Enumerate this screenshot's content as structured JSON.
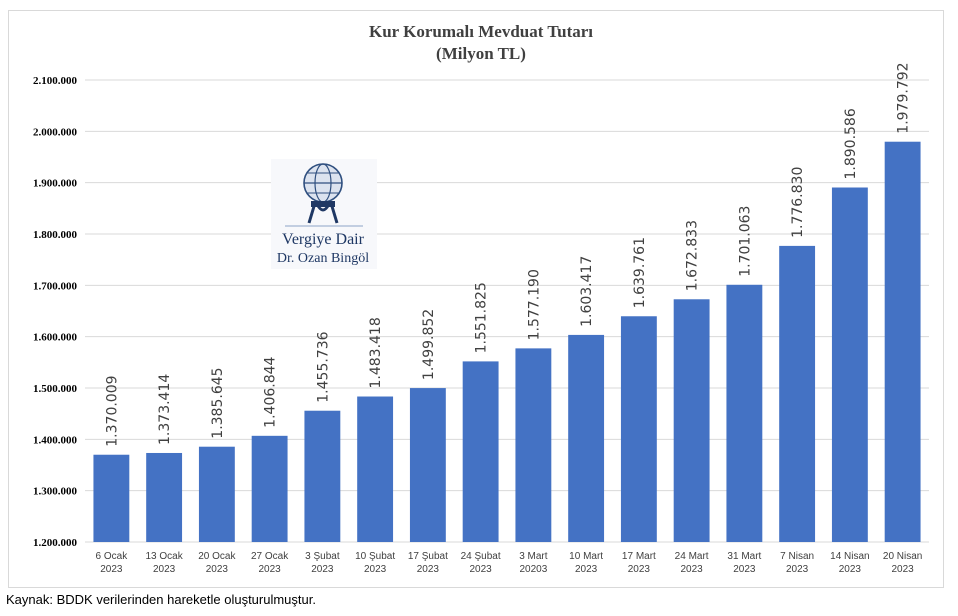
{
  "chart_data": {
    "type": "bar",
    "title": "Kur Korumalı Mevduat Tutarı",
    "subtitle": "(Milyon TL)",
    "categories": [
      [
        "6 Ocak",
        "2023"
      ],
      [
        "13 Ocak",
        "2023"
      ],
      [
        "20 Ocak",
        "2023"
      ],
      [
        "27 Ocak",
        "2023"
      ],
      [
        "3 Şubat",
        "2023"
      ],
      [
        "10 Şubat",
        "2023"
      ],
      [
        "17 Şubat",
        "2023"
      ],
      [
        "24 Şubat",
        "2023"
      ],
      [
        "3 Mart",
        "20203"
      ],
      [
        "10 Mart",
        "2023"
      ],
      [
        "17 Mart",
        "2023"
      ],
      [
        "24 Mart",
        "2023"
      ],
      [
        "31 Mart",
        "2023"
      ],
      [
        "7 Nisan",
        "2023"
      ],
      [
        "14 Nisan",
        "2023"
      ],
      [
        "20 Nisan",
        "2023"
      ]
    ],
    "values": [
      1370009,
      1373414,
      1385645,
      1406844,
      1455736,
      1483418,
      1499852,
      1551825,
      1577190,
      1603417,
      1639761,
      1672833,
      1701063,
      1776830,
      1890586,
      1979792
    ],
    "data_labels": [
      "1.370.009",
      "1.373.414",
      "1.385.645",
      "1.406.844",
      "1.455.736",
      "1.483.418",
      "1.499.852",
      "1.551.825",
      "1.577.190",
      "1.603.417",
      "1.639.761",
      "1.672.833",
      "1.701.063",
      "1.776.830",
      "1.890.586",
      "1.979.792"
    ],
    "ylim": [
      1200000,
      2100000
    ],
    "yticks": [
      1200000,
      1300000,
      1400000,
      1500000,
      1600000,
      1700000,
      1800000,
      1900000,
      2000000,
      2100000
    ],
    "ytick_labels": [
      "1.200.000",
      "1.300.000",
      "1.400.000",
      "1.500.000",
      "1.600.000",
      "1.700.000",
      "1.800.000",
      "1.900.000",
      "2.000.000",
      "2.100.000"
    ],
    "grid": true,
    "legend": "none",
    "bar_color": "#4472c4"
  },
  "watermark": {
    "line1": "Vergiye Dair",
    "line2": "Dr. Ozan Bingöl",
    "icon": "atlas-globe-icon"
  },
  "source_note": "Kaynak: BDDK verilerinden hareketle oluşturulmuştur."
}
